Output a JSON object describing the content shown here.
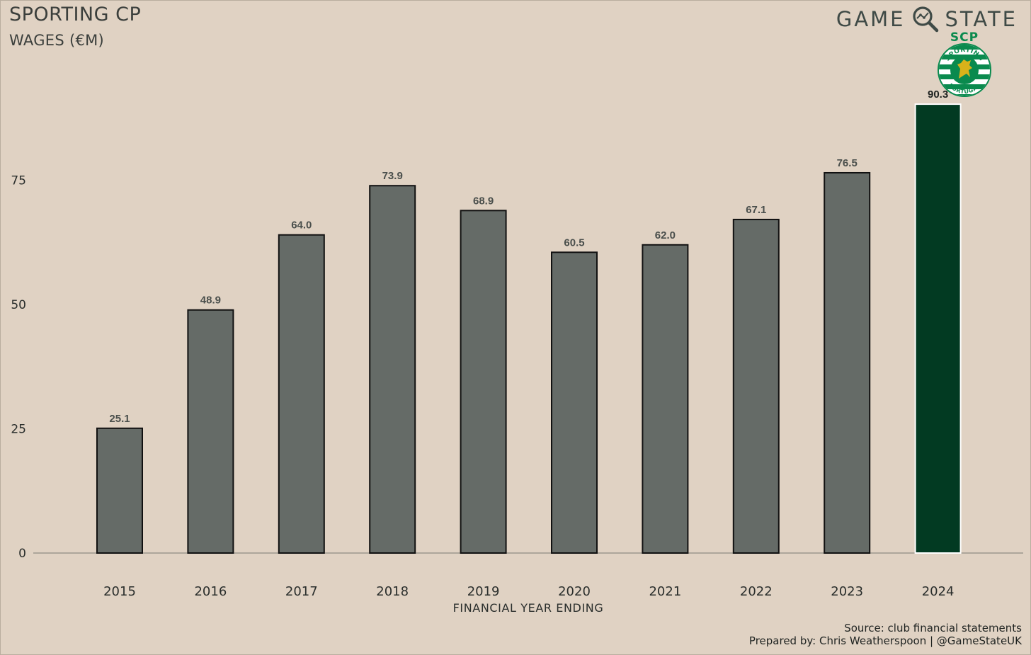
{
  "header": {
    "title": "SPORTING CP",
    "subtitle": "WAGES (€M)"
  },
  "brand": {
    "word_left": "GAME",
    "word_right": "STATE",
    "icon": "magnifier-chart-icon"
  },
  "crest": {
    "icon": "sporting-cp-crest-icon",
    "letters": "SCP",
    "ring_top": "SPORTING",
    "ring_bottom": "PORTUGAL"
  },
  "colors": {
    "bar": "#656b67",
    "highlight": "#023a22",
    "background": "#e0d2c3",
    "baseline": "#9c978e",
    "crest_green": "#0a8a4e",
    "crest_gold": "#d8b21a"
  },
  "chart_data": {
    "type": "bar",
    "categories": [
      "2015",
      "2016",
      "2017",
      "2018",
      "2019",
      "2020",
      "2021",
      "2022",
      "2023",
      "2024"
    ],
    "values": [
      25.1,
      48.9,
      64.0,
      73.9,
      68.9,
      60.5,
      62.0,
      67.1,
      76.5,
      90.3
    ],
    "data_labels": [
      "25.1",
      "48.9",
      "64.0",
      "73.9",
      "68.9",
      "60.5",
      "62.0",
      "67.1",
      "76.5",
      "90.3"
    ],
    "highlight_category": "2024",
    "title": "SPORTING CP",
    "subtitle": "WAGES (€M)",
    "xlabel": "FINANCIAL YEAR ENDING",
    "ylabel": "",
    "yticks": [
      0,
      25,
      50,
      75
    ],
    "ylim": [
      0,
      100
    ],
    "grid": false,
    "legend": "none"
  },
  "footer": {
    "source": "Source: club financial statements",
    "credit": "Prepared by: Chris Weatherspoon | @GameStateUK"
  }
}
